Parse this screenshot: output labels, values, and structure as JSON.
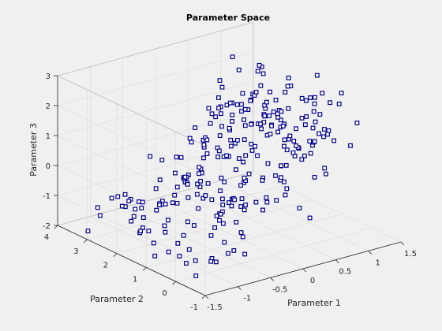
{
  "chart_data": {
    "type": "scatter3d",
    "title": "Parameter Space",
    "xlabel": "Parameter 1",
    "ylabel": "Parameter 2",
    "zlabel": "Parameter 3",
    "xlim": [
      -1.5,
      1.5
    ],
    "ylim": [
      -1,
      4
    ],
    "zlim": [
      -2,
      3
    ],
    "xticks": [
      "-1.5",
      "-1",
      "-0.5",
      "0",
      "0.5",
      "1",
      "1.5"
    ],
    "yticks": [
      "-1",
      "0",
      "1",
      "2",
      "3",
      "4"
    ],
    "zticks": [
      "-2",
      "-1",
      "0",
      "1",
      "2",
      "3"
    ],
    "grid": true,
    "marker": "square",
    "marker_color": "#00008b",
    "points": []
  }
}
